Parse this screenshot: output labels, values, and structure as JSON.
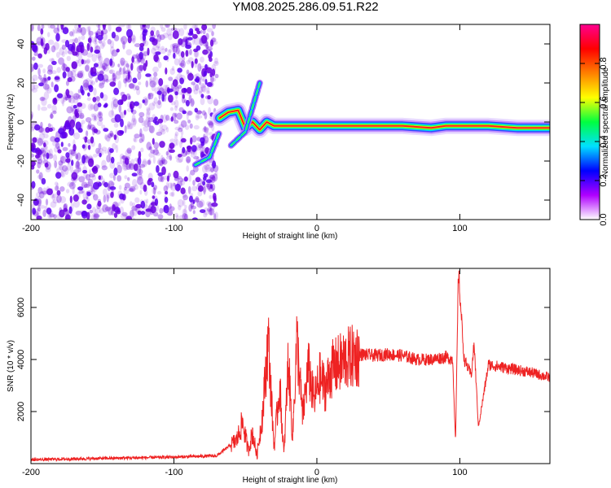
{
  "title": "YM08.2025.286.09.51.R22",
  "chart_data": [
    {
      "type": "heatmap",
      "xlabel": "Height of straight line (km)",
      "ylabel": "Frequency (Hz)",
      "xlim": [
        -200,
        163
      ],
      "ylim": [
        -50,
        50
      ],
      "xticks": [
        -200,
        -100,
        0,
        100
      ],
      "yticks": [
        -40,
        -20,
        0,
        20,
        40
      ],
      "colorbar": {
        "label": "Normalized spectral amplitude",
        "range": [
          0,
          1
        ],
        "ticks": [
          "0.0",
          "0.2",
          "0.4",
          "0.6",
          "0.8"
        ],
        "colormap": [
          "#ffffff",
          "#b000ff",
          "#0000ff",
          "#00e0ff",
          "#00ff40",
          "#ffff00",
          "#ff8000",
          "#ff0000",
          "#ff0090"
        ]
      },
      "noise_region_x": [
        -200,
        -70
      ],
      "noise_color": "#6a00e0",
      "ridge": [
        {
          "x": -68,
          "f": 2
        },
        {
          "x": -62,
          "f": 5
        },
        {
          "x": -55,
          "f": 6
        },
        {
          "x": -50,
          "f": -3
        },
        {
          "x": -45,
          "f": 0
        },
        {
          "x": -40,
          "f": -4
        },
        {
          "x": -35,
          "f": 0
        },
        {
          "x": -30,
          "f": -2
        },
        {
          "x": -20,
          "f": -2
        },
        {
          "x": 0,
          "f": -2
        },
        {
          "x": 20,
          "f": -2
        },
        {
          "x": 40,
          "f": -2
        },
        {
          "x": 60,
          "f": -2
        },
        {
          "x": 80,
          "f": -3
        },
        {
          "x": 90,
          "f": -2
        },
        {
          "x": 100,
          "f": -2
        },
        {
          "x": 120,
          "f": -2
        },
        {
          "x": 140,
          "f": -3
        },
        {
          "x": 163,
          "f": -3
        }
      ],
      "lower_branch": [
        {
          "x": -85,
          "f": -22
        },
        {
          "x": -75,
          "f": -18
        },
        {
          "x": -68,
          "f": -5
        }
      ],
      "upper_branch": [
        {
          "x": -60,
          "f": -12
        },
        {
          "x": -50,
          "f": -5
        },
        {
          "x": -40,
          "f": 20
        }
      ]
    },
    {
      "type": "line",
      "xlabel": "Height of straight line (km)",
      "ylabel": "SNR (10 * v/v)",
      "xlim": [
        -200,
        163
      ],
      "ylim": [
        0,
        7500
      ],
      "xticks": [
        -200,
        -100,
        0,
        100
      ],
      "yticks": [
        2000,
        4000,
        6000
      ],
      "color": "#ee2222",
      "series": [
        {
          "x": [
            -200,
            -150,
            -100,
            -70,
            -56,
            -52,
            -48,
            -45,
            -42,
            -38,
            -34,
            -30,
            -26,
            -23,
            -20,
            -17,
            -14,
            -10,
            -6,
            -2,
            2,
            6,
            10,
            15,
            20,
            30,
            40,
            50,
            60,
            70,
            80,
            90,
            95,
            97,
            99,
            103,
            108,
            110,
            113,
            120,
            130,
            140,
            150,
            163
          ],
          "y": [
            150,
            200,
            250,
            300,
            900,
            1600,
            500,
            1200,
            300,
            1900,
            4800,
            600,
            3000,
            300,
            4000,
            1000,
            4800,
            1800,
            3700,
            2400,
            3300,
            2900,
            3600,
            3800,
            4000,
            4200,
            4150,
            4200,
            4150,
            4000,
            4000,
            4100,
            4000,
            800,
            7400,
            4000,
            3400,
            4600,
            1400,
            3800,
            3700,
            3600,
            3500,
            3300
          ]
        }
      ]
    }
  ]
}
